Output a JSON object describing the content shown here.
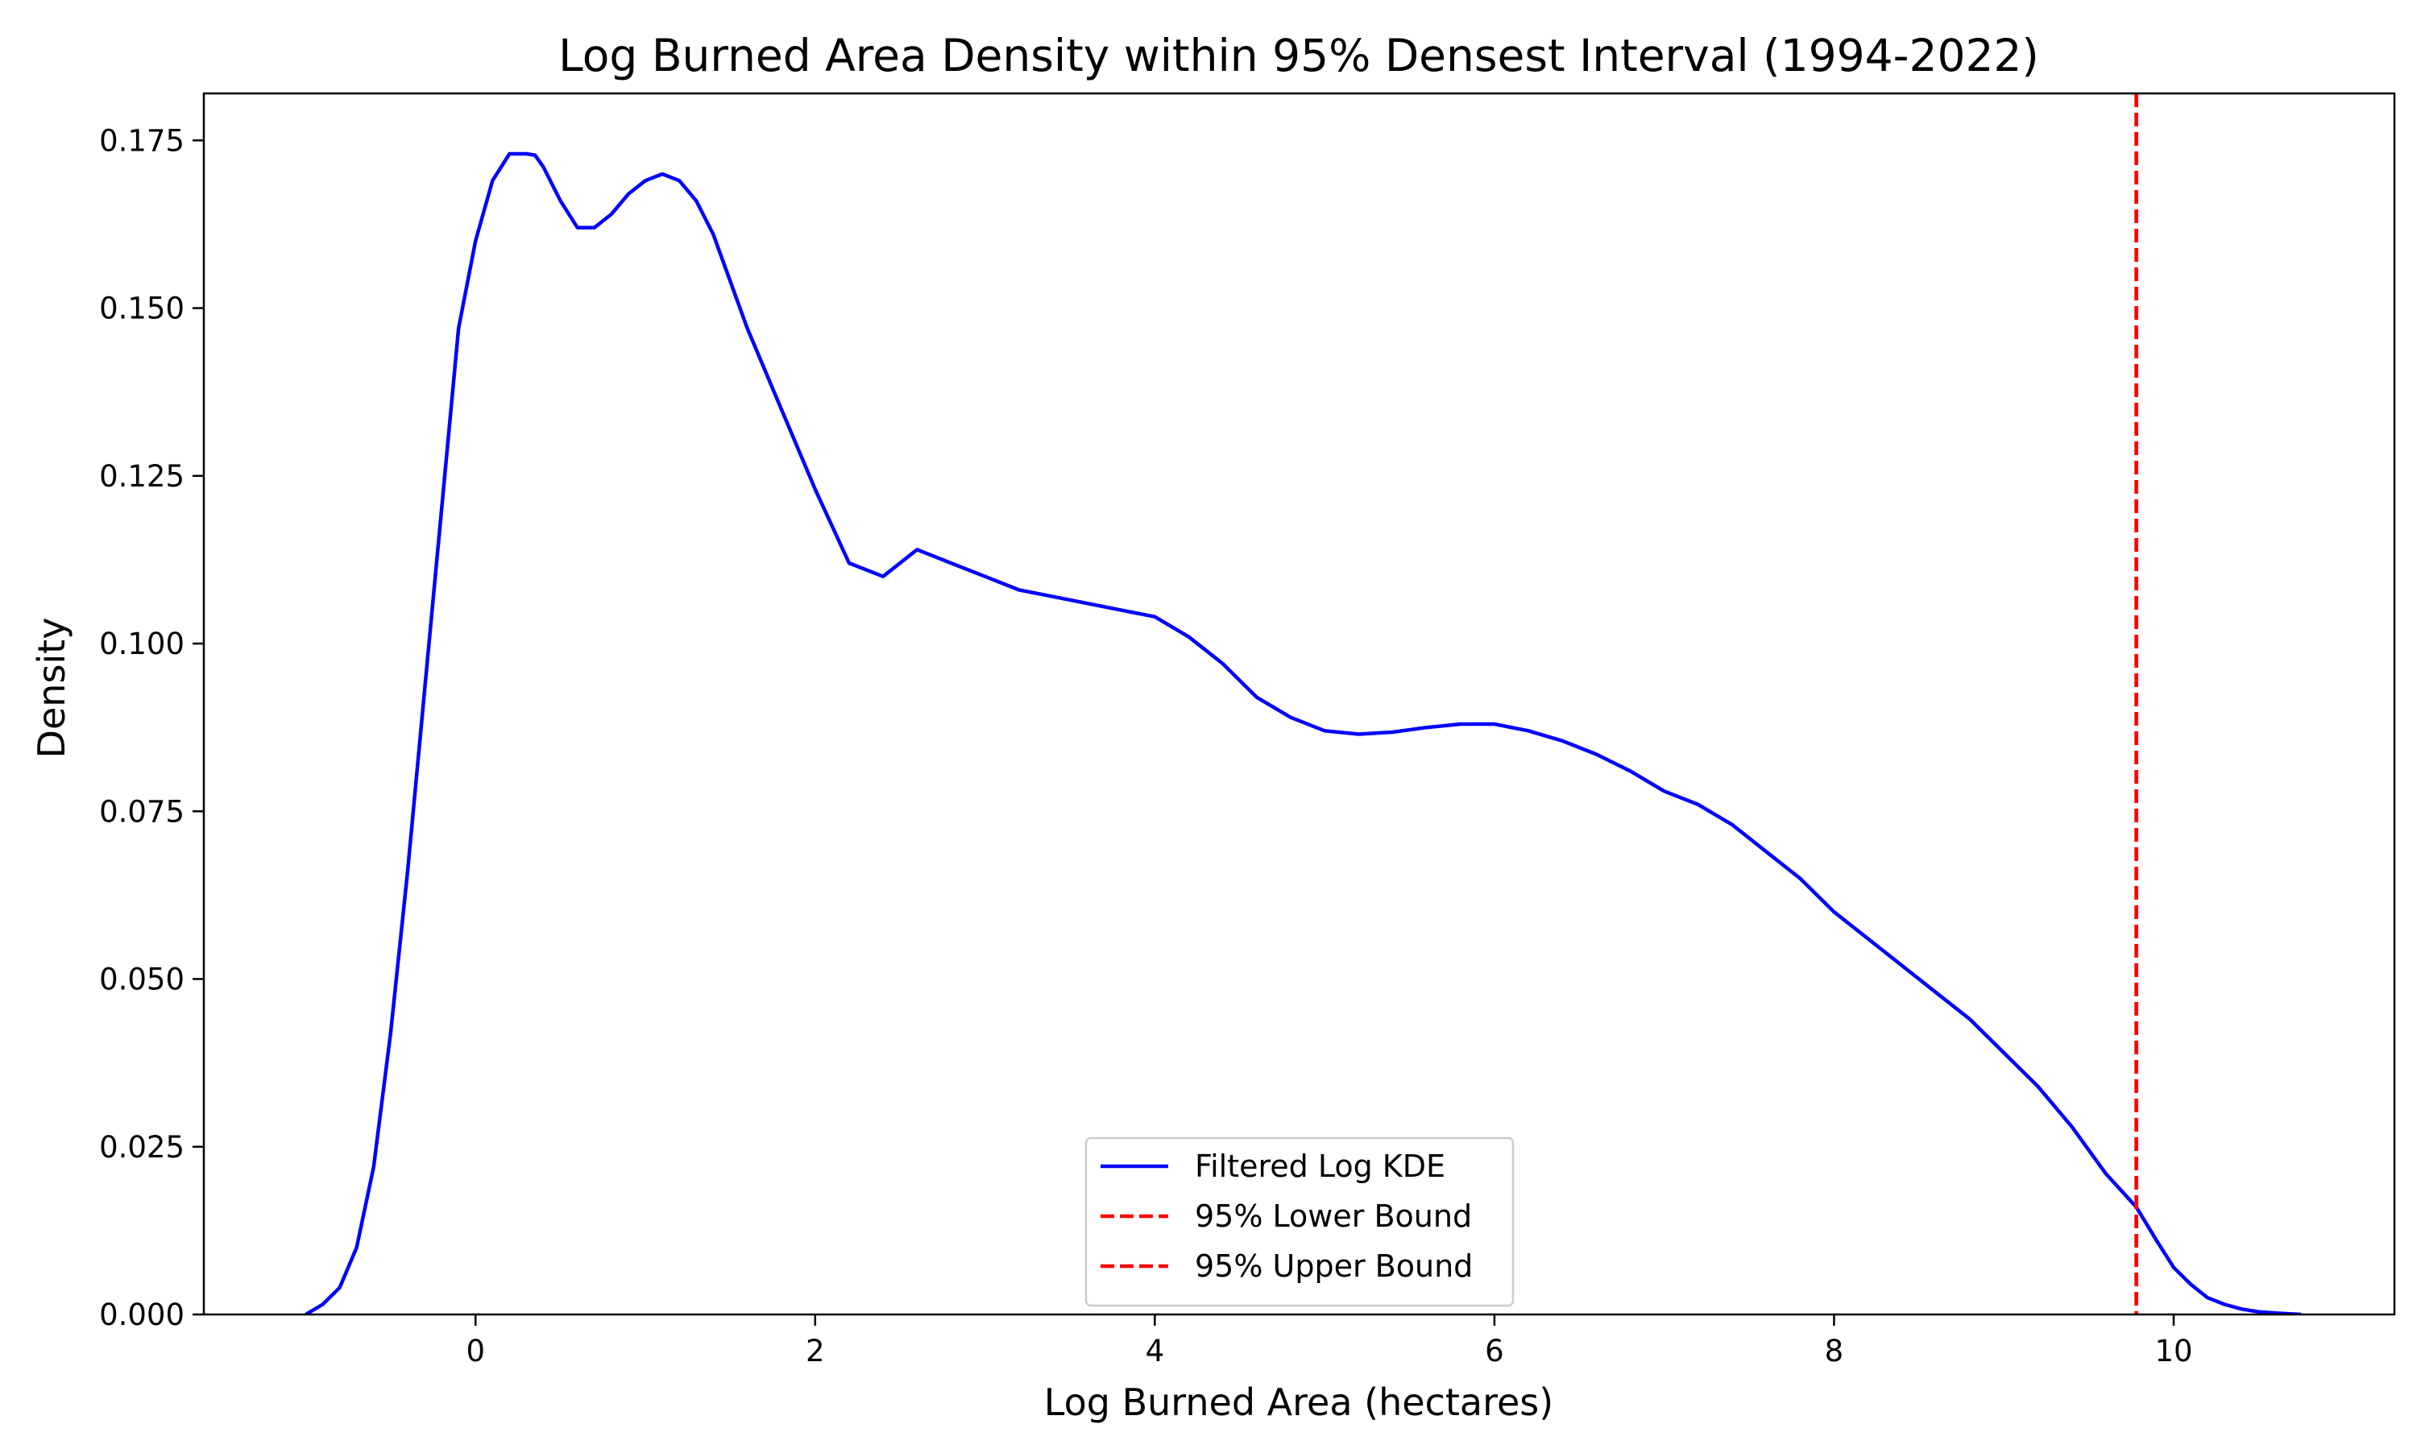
{
  "chart_data": {
    "type": "line",
    "title": "Log Burned Area Density within 95% Densest Interval (1994-2022)",
    "xlabel": "Log Burned Area (hectares)",
    "ylabel": "Density",
    "xlim": [
      -1.6,
      11.3
    ],
    "ylim": [
      0.0,
      0.182
    ],
    "xticks": [
      0,
      2,
      4,
      6,
      8,
      10
    ],
    "xtick_labels": [
      "0",
      "2",
      "4",
      "6",
      "8",
      "10"
    ],
    "yticks": [
      0.0,
      0.025,
      0.05,
      0.075,
      0.1,
      0.125,
      0.15,
      0.175
    ],
    "ytick_labels": [
      "0.000",
      "0.025",
      "0.050",
      "0.075",
      "0.100",
      "0.125",
      "0.150",
      "0.175"
    ],
    "grid": false,
    "legend_position": "bottom-center",
    "series": [
      {
        "name": "Filtered Log KDE",
        "color": "#0000ff",
        "style": "solid",
        "x": [
          -1.0,
          -0.9,
          -0.8,
          -0.7,
          -0.6,
          -0.5,
          -0.4,
          -0.3,
          -0.2,
          -0.1,
          0.0,
          0.1,
          0.2,
          0.3,
          0.35,
          0.4,
          0.5,
          0.6,
          0.7,
          0.8,
          0.9,
          1.0,
          1.1,
          1.2,
          1.3,
          1.4,
          1.5,
          1.6,
          1.8,
          2.0,
          2.2,
          2.4,
          2.6,
          2.8,
          3.0,
          3.2,
          3.4,
          3.6,
          3.8,
          4.0,
          4.2,
          4.4,
          4.6,
          4.8,
          5.0,
          5.2,
          5.4,
          5.6,
          5.8,
          6.0,
          6.2,
          6.4,
          6.6,
          6.8,
          7.0,
          7.2,
          7.4,
          7.6,
          7.8,
          8.0,
          8.2,
          8.4,
          8.6,
          8.8,
          9.0,
          9.2,
          9.4,
          9.6,
          9.78,
          9.9,
          10.0,
          10.1,
          10.2,
          10.3,
          10.4,
          10.5,
          10.6,
          10.75
        ],
        "values": [
          0.0,
          0.0015,
          0.004,
          0.01,
          0.022,
          0.042,
          0.066,
          0.093,
          0.12,
          0.147,
          0.16,
          0.169,
          0.173,
          0.173,
          0.1728,
          0.171,
          0.166,
          0.162,
          0.162,
          0.164,
          0.167,
          0.169,
          0.17,
          0.169,
          0.166,
          0.161,
          0.154,
          0.147,
          0.135,
          0.123,
          0.112,
          0.11,
          0.114,
          0.112,
          0.11,
          0.108,
          0.107,
          0.106,
          0.105,
          0.104,
          0.101,
          0.097,
          0.092,
          0.089,
          0.087,
          0.0865,
          0.0868,
          0.0875,
          0.088,
          0.088,
          0.087,
          0.0855,
          0.0835,
          0.081,
          0.078,
          0.076,
          0.073,
          0.069,
          0.065,
          0.06,
          0.056,
          0.052,
          0.048,
          0.044,
          0.039,
          0.034,
          0.028,
          0.021,
          0.016,
          0.011,
          0.007,
          0.0045,
          0.0025,
          0.0015,
          0.0008,
          0.0004,
          0.0002,
          0.0
        ]
      }
    ],
    "vlines": [
      {
        "name": "95% Lower Bound",
        "x": 9.78,
        "color": "#ff0000",
        "style": "dashed"
      },
      {
        "name": "95% Upper Bound",
        "x": 9.78,
        "color": "#ff0000",
        "style": "dashed"
      }
    ]
  }
}
